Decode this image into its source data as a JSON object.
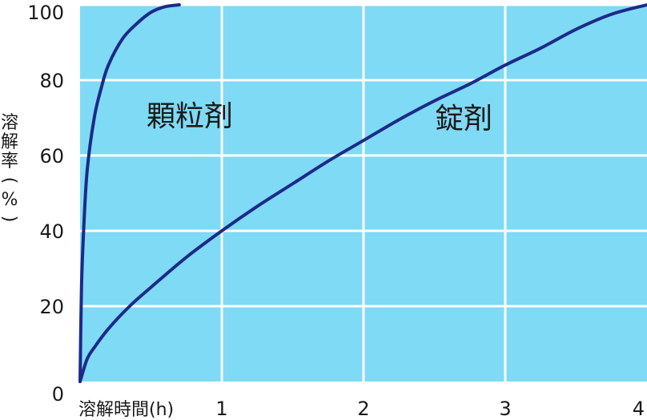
{
  "chart_data": {
    "type": "line",
    "title": "",
    "xlabel": "溶解時間(h)",
    "ylabel": "溶解率(%)",
    "ylabel_chars": [
      "溶",
      "解",
      "率",
      "(",
      "%",
      ")"
    ],
    "xlim": [
      0,
      4
    ],
    "ylim": [
      0,
      100
    ],
    "x_ticks": [
      1,
      2,
      3,
      4
    ],
    "y_ticks": [
      0,
      20,
      40,
      60,
      80,
      100
    ],
    "grid": true,
    "legend": "none",
    "colors": {
      "plot_background": "#7fdaf5",
      "grid": "#ffffff",
      "line": "#1c2a8a",
      "text": "#1a1a1a"
    },
    "series": [
      {
        "name": "顆粒剤",
        "x": [
          0,
          0.01,
          0.025,
          0.05,
          0.1,
          0.15,
          0.2,
          0.3,
          0.4,
          0.5,
          0.6,
          0.7
        ],
        "y": [
          0,
          25,
          40,
          56,
          70,
          78,
          84,
          91,
          95,
          98,
          99.5,
          100
        ]
      },
      {
        "name": "錠剤",
        "x": [
          0,
          0.05,
          0.1,
          0.2,
          0.35,
          0.5,
          0.75,
          1,
          1.25,
          1.5,
          1.75,
          2,
          2.25,
          2.5,
          2.75,
          3,
          3.25,
          3.5,
          3.75,
          4
        ],
        "y": [
          0,
          6,
          9,
          14,
          20,
          25,
          33,
          40,
          46.5,
          52.5,
          58.5,
          64,
          69.5,
          74.5,
          79,
          84,
          88.5,
          93.5,
          97.5,
          100
        ]
      }
    ]
  }
}
